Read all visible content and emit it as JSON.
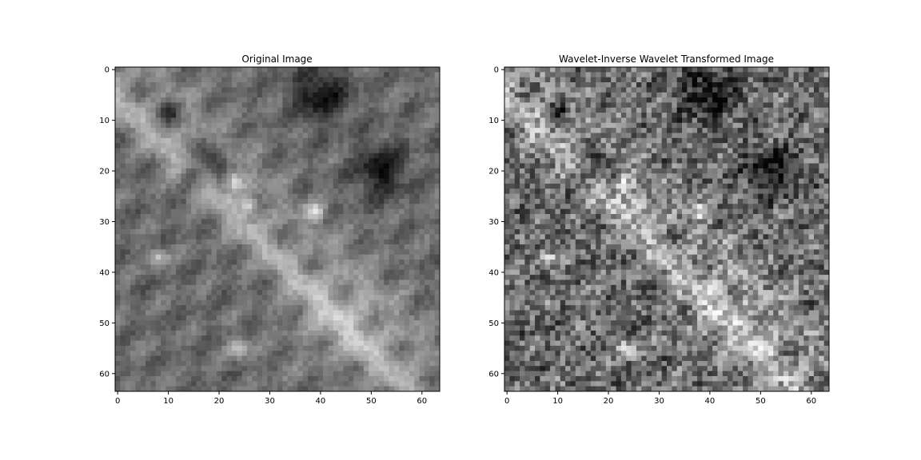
{
  "chart_data": [
    {
      "type": "heatmap",
      "title": "Original Image",
      "colormap": "gray",
      "grid": false,
      "shape": [
        64,
        64
      ],
      "xlim": [
        -0.5,
        63.5
      ],
      "ylim": [
        63.5,
        -0.5
      ],
      "xticks": [
        0,
        10,
        20,
        30,
        40,
        50,
        60
      ],
      "yticks": [
        0,
        10,
        20,
        30,
        40,
        50,
        60
      ]
    },
    {
      "type": "heatmap",
      "title": "Wavelet-Inverse Wavelet Transformed Image",
      "colormap": "gray",
      "grid": false,
      "shape": [
        64,
        64
      ],
      "xlim": [
        -0.5,
        63.5
      ],
      "ylim": [
        63.5,
        -0.5
      ],
      "xticks": [
        0,
        10,
        20,
        30,
        40,
        50,
        60
      ],
      "yticks": [
        0,
        10,
        20,
        30,
        40,
        50,
        60
      ]
    }
  ]
}
